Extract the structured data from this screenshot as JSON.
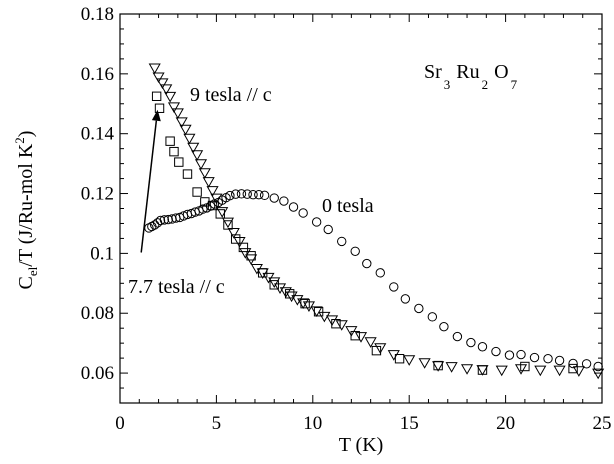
{
  "chart_data": {
    "type": "scatter",
    "title": "",
    "xlabel": "T (K)",
    "ylabel": {
      "main": "C",
      "sub": "el",
      "rest": "/T (J/Ru-mol K",
      "sup": "2",
      "close": ")"
    },
    "xlim": [
      0,
      25
    ],
    "ylim": [
      0.05,
      0.18
    ],
    "xticks": [
      0,
      5,
      10,
      15,
      20,
      25
    ],
    "xtick_labels": [
      "0",
      "5",
      "10",
      "15",
      "20",
      "25"
    ],
    "yticks": [
      0.06,
      0.08,
      0.1,
      0.12,
      0.14,
      0.16,
      0.18
    ],
    "ytick_labels": [
      "0.06",
      "0.08",
      "0.1",
      "0.12",
      "0.14",
      "0.16",
      "0.18"
    ],
    "grid": false,
    "formula": [
      {
        "t": "Sr",
        "s": "3"
      },
      {
        "t": "Ru",
        "s": "2"
      },
      {
        "t": "O",
        "s": "7"
      }
    ],
    "annotations": {
      "nine": "9 tesla // c",
      "zero": "0 tesla",
      "seven": "7.7 tesla // c"
    },
    "arrow": {
      "from": [
        1.1,
        0.1003
      ],
      "to": [
        1.95,
        0.148
      ]
    },
    "series": [
      {
        "label_key": "zero",
        "marker": "circle",
        "x": [
          1.5,
          1.65,
          1.8,
          1.95,
          2.1,
          2.3,
          2.5,
          2.7,
          2.9,
          3.1,
          3.3,
          3.5,
          3.7,
          3.9,
          4.1,
          4.3,
          4.5,
          4.7,
          4.9,
          5.1,
          5.3,
          5.5,
          5.7,
          6.0,
          6.3,
          6.6,
          6.9,
          7.2,
          7.5,
          8.0,
          8.5,
          9.0,
          9.5,
          10.2,
          10.8,
          11.5,
          12.2,
          12.8,
          13.5,
          14.2,
          14.8,
          15.5,
          16.2,
          16.8,
          17.5,
          18.2,
          18.8,
          19.5,
          20.2,
          20.8,
          21.5,
          22.2,
          22.8,
          23.5,
          24.2,
          24.8
        ],
        "y": [
          0.1085,
          0.109,
          0.1095,
          0.1102,
          0.111,
          0.1112,
          0.1113,
          0.1115,
          0.1118,
          0.112,
          0.1125,
          0.113,
          0.1133,
          0.1138,
          0.1142,
          0.1148,
          0.1152,
          0.1158,
          0.1165,
          0.117,
          0.1178,
          0.1186,
          0.1193,
          0.1198,
          0.1199,
          0.1198,
          0.1196,
          0.1196,
          0.1194,
          0.1185,
          0.1175,
          0.1155,
          0.1135,
          0.1105,
          0.108,
          0.104,
          0.1007,
          0.0966,
          0.0935,
          0.0888,
          0.0848,
          0.0816,
          0.0788,
          0.0755,
          0.0722,
          0.0702,
          0.0688,
          0.0672,
          0.066,
          0.0662,
          0.0652,
          0.0648,
          0.0642,
          0.0632,
          0.0631,
          0.0622
        ]
      },
      {
        "label_key": "nine",
        "marker": "triangle-down",
        "x": [
          1.8,
          2.0,
          2.2,
          2.4,
          2.6,
          2.8,
          3.0,
          3.2,
          3.4,
          3.6,
          3.8,
          4.0,
          4.2,
          4.4,
          4.6,
          4.8,
          5.0,
          5.3,
          5.6,
          5.9,
          6.2,
          6.5,
          6.8,
          7.1,
          7.4,
          7.7,
          8.0,
          8.3,
          8.6,
          8.9,
          9.2,
          9.5,
          9.8,
          10.2,
          10.6,
          11.0,
          11.5,
          12.0,
          12.5,
          13.0,
          13.5,
          14.2,
          15.0,
          15.8,
          16.5,
          17.2,
          18.0,
          18.8,
          19.8,
          20.8,
          21.8,
          22.8,
          23.8,
          24.8
        ],
        "y": [
          0.162,
          0.159,
          0.157,
          0.155,
          0.1525,
          0.149,
          0.147,
          0.144,
          0.1415,
          0.1385,
          0.1355,
          0.133,
          0.13,
          0.127,
          0.124,
          0.121,
          0.1185,
          0.114,
          0.1105,
          0.107,
          0.104,
          0.1003,
          0.0982,
          0.095,
          0.0935,
          0.092,
          0.0905,
          0.0885,
          0.0872,
          0.0858,
          0.0846,
          0.0835,
          0.0825,
          0.0808,
          0.079,
          0.0778,
          0.0762,
          0.0742,
          0.0722,
          0.0705,
          0.0685,
          0.0662,
          0.0645,
          0.0635,
          0.0625,
          0.0622,
          0.0615,
          0.0612,
          0.061,
          0.0615,
          0.061,
          0.061,
          0.0608,
          0.06
        ]
      },
      {
        "label_key": "seven",
        "marker": "square",
        "x": [
          1.9,
          2.05,
          2.6,
          2.8,
          3.05,
          3.5,
          4.0,
          4.4,
          4.8,
          5.2,
          5.6,
          6.0,
          6.4,
          6.8,
          7.4,
          8.0,
          8.8,
          9.6,
          10.3,
          11.2,
          12.2,
          13.3,
          14.5,
          16.5,
          18.8,
          21.0,
          23.5
        ],
        "y": [
          0.1525,
          0.1485,
          0.1375,
          0.134,
          0.1305,
          0.1265,
          0.1205,
          0.1172,
          0.116,
          0.1132,
          0.1095,
          0.1048,
          0.102,
          0.0992,
          0.0935,
          0.0895,
          0.0865,
          0.0832,
          0.0805,
          0.0765,
          0.0725,
          0.0675,
          0.0648,
          0.0625,
          0.061,
          0.0622,
          0.0615
        ]
      }
    ]
  }
}
